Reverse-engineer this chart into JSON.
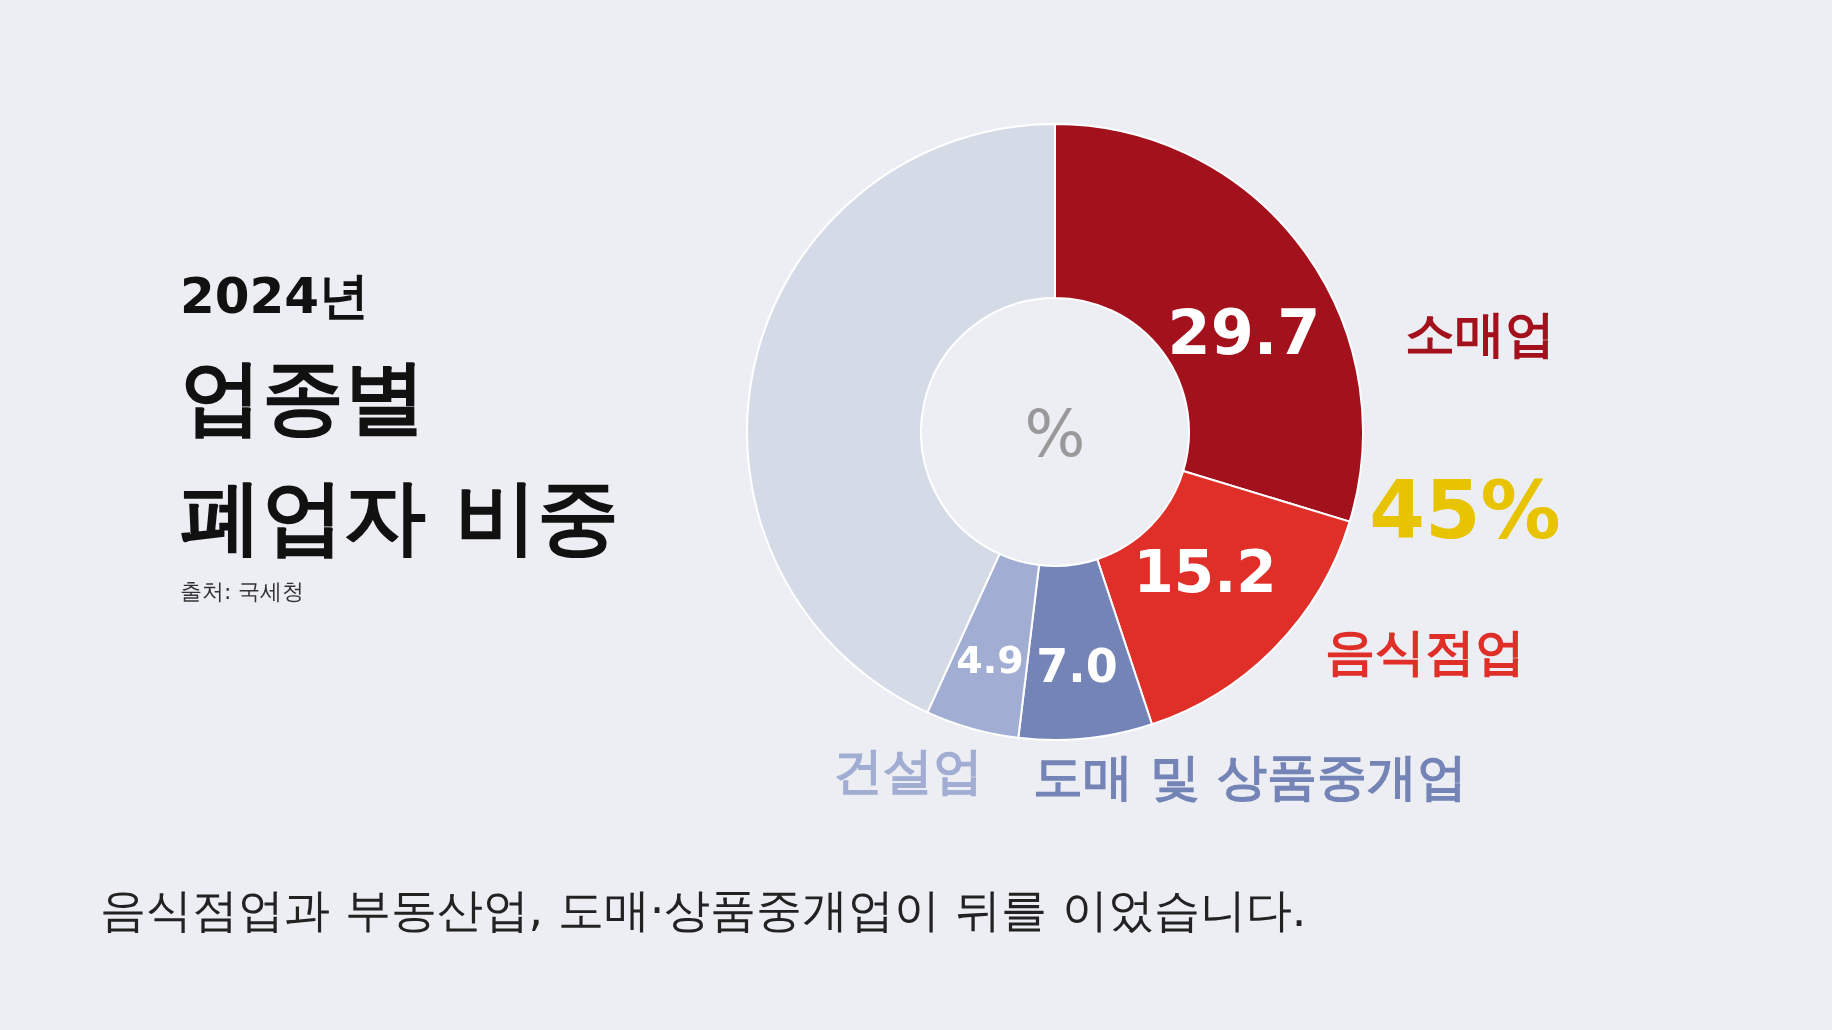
{
  "chart_data": {
    "type": "donut",
    "title": "2024년 업종별 폐업자 비중",
    "categories": [
      "소매업",
      "음식점업",
      "도매 및 상품중개업",
      "건설업",
      null
    ],
    "values": [
      29.7,
      15.2,
      7.0,
      4.9,
      43.2
    ],
    "value_labels": [
      "29.7",
      "15.2",
      "7.0",
      "4.9",
      null
    ],
    "colors": [
      "#a3111d",
      "#df2f28",
      "#7584b6",
      "#a2add3",
      "#d5dae7"
    ],
    "annotations": [
      "%",
      "45%",
      "출처: 국세청",
      "음식점업과 부동산업, 도매·상품중개업이 뒤를 이었습니다."
    ]
  }
}
